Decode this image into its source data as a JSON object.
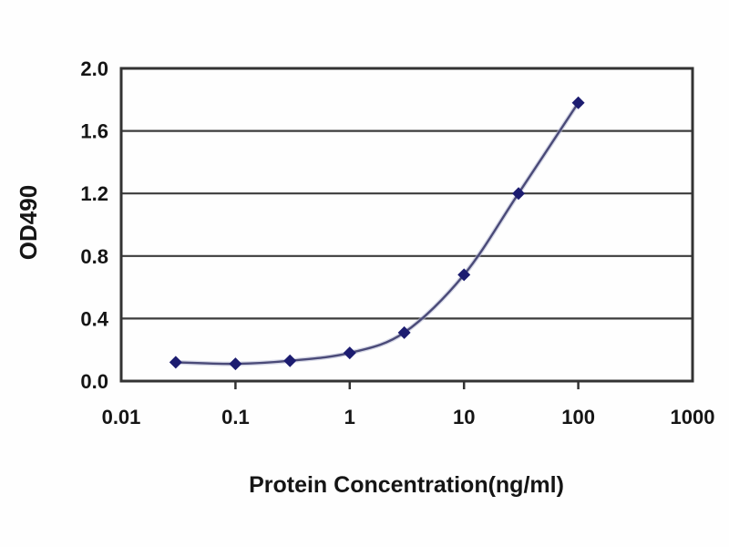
{
  "chart_data": {
    "type": "line",
    "title": "",
    "xlabel": "Protein Concentration(ng/ml)",
    "ylabel": "OD490",
    "x_scale": "log",
    "xlim": [
      0.01,
      1000
    ],
    "ylim": [
      0.0,
      2.0
    ],
    "x_ticks": [
      0.01,
      0.1,
      1,
      10,
      100,
      1000
    ],
    "x_tick_labels": [
      "0.01",
      "0.1",
      "1",
      "10",
      "100",
      "1000"
    ],
    "x_minor_tick_marks": [
      0.1,
      1,
      10,
      100
    ],
    "y_ticks": [
      0.0,
      0.4,
      0.8,
      1.2,
      1.6,
      2.0
    ],
    "y_tick_labels": [
      "0.0",
      "0.4",
      "0.8",
      "1.2",
      "1.6",
      "2.0"
    ],
    "grid": "horizontal",
    "legend": "none",
    "marker": "diamond",
    "series": [
      {
        "name": "OD490",
        "x": [
          0.03,
          0.1,
          0.3,
          1,
          3,
          10,
          30,
          100
        ],
        "y": [
          0.12,
          0.11,
          0.13,
          0.18,
          0.31,
          0.68,
          1.2,
          1.78
        ]
      }
    ],
    "colors": {
      "marker": "#1c1c70",
      "line": "#4a4a78",
      "line_halo": "#b4b8d4",
      "grid": "#3c3c3c",
      "frame": "#333333",
      "text": "#151515",
      "background": "#fefefe"
    }
  }
}
